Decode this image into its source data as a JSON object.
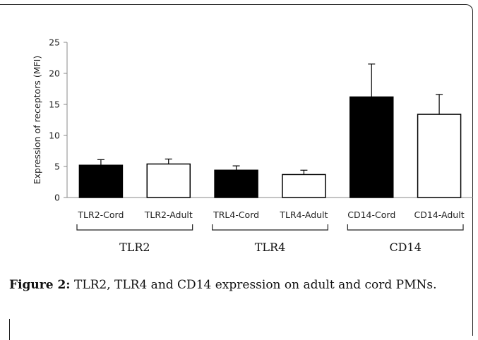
{
  "chart_data": {
    "type": "bar",
    "categories": [
      "TLR2-Cord",
      "TLR2-Adult",
      "TRL4-Cord",
      "TLR4-Adult",
      "CD14-Cord",
      "CD14-Adult"
    ],
    "values": [
      5.2,
      5.4,
      4.4,
      3.7,
      16.2,
      13.4
    ],
    "errors": [
      0.9,
      0.8,
      0.7,
      0.7,
      5.3,
      3.2
    ],
    "bar_fills": [
      "#000000",
      "#ffffff",
      "#000000",
      "#ffffff",
      "#000000",
      "#ffffff"
    ],
    "groups": [
      {
        "label": "TLR2",
        "members": [
          0,
          1
        ]
      },
      {
        "label": "TLR4",
        "members": [
          2,
          3
        ]
      },
      {
        "label": "CD14",
        "members": [
          4,
          5
        ]
      }
    ],
    "yticks": [
      0,
      5,
      10,
      15,
      20,
      25
    ],
    "ylim": [
      0,
      25
    ],
    "ylabel": "Expression of receptors (MFI)",
    "xlabel": "",
    "grid": false
  },
  "caption": {
    "label": "Figure 2:",
    "text": " TLR2, TLR4 and CD14 expression on adult and cord PMNs."
  }
}
